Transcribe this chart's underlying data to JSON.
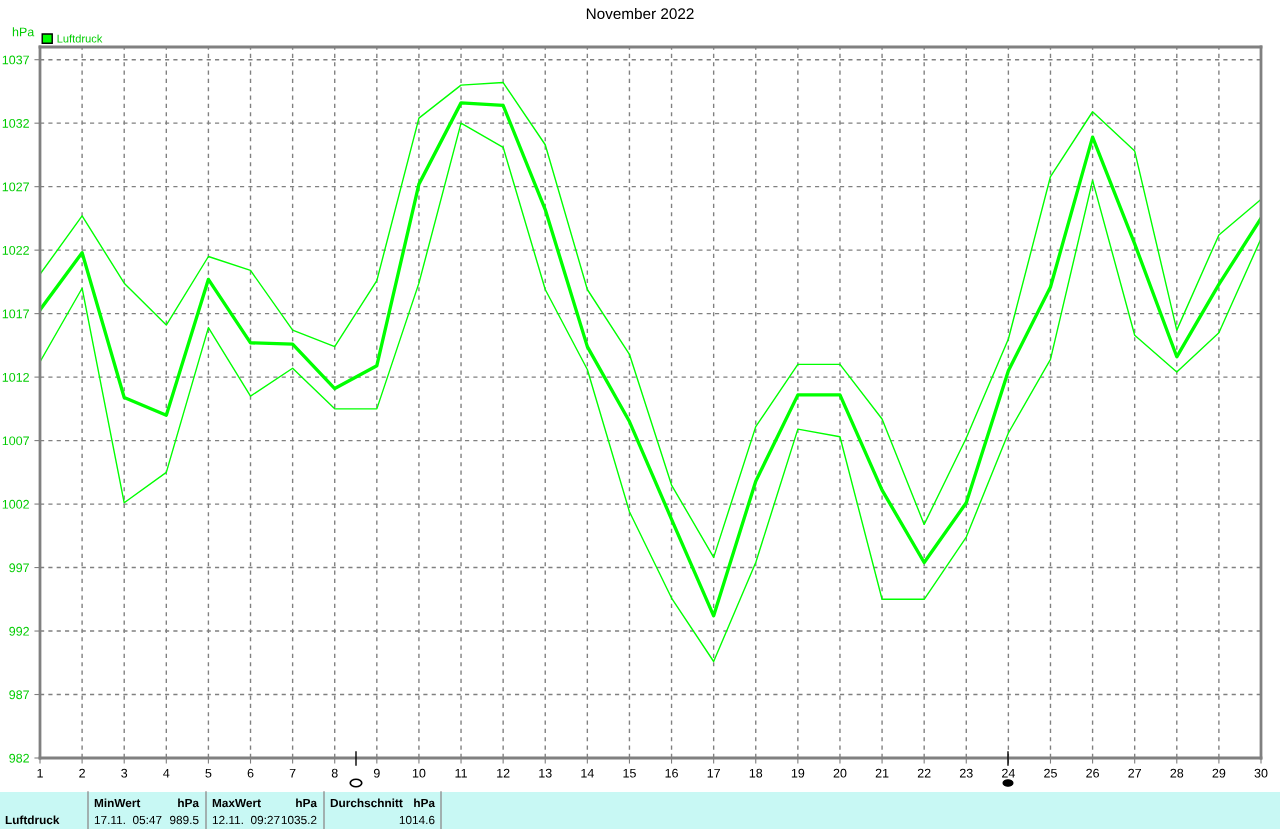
{
  "chart_data": {
    "type": "line",
    "title": "November 2022",
    "ylabel": "hPa",
    "x": [
      1,
      2,
      3,
      4,
      5,
      6,
      7,
      8,
      9,
      10,
      11,
      12,
      13,
      14,
      15,
      16,
      17,
      18,
      19,
      20,
      21,
      22,
      23,
      24,
      25,
      26,
      27,
      28,
      29,
      30
    ],
    "series": [
      {
        "name": "Luftdruck",
        "color": "#00ff00",
        "values": [
          1017.3,
          1021.8,
          1010.4,
          1009.0,
          1019.7,
          1014.7,
          1014.6,
          1011.1,
          1012.9,
          1027.2,
          1033.6,
          1033.4,
          1025.2,
          1014.4,
          1008.5,
          1000.8,
          993.2,
          1003.8,
          1010.6,
          1010.6,
          1003.1,
          997.4,
          1002.1,
          1012.5,
          1019.1,
          1030.9,
          1022.5,
          1013.6,
          1019.3,
          1024.5
        ]
      },
      {
        "color": "#00ff00",
        "values": [
          1020.1,
          1024.7,
          1019.4,
          1016.1,
          1021.5,
          1020.4,
          1015.7,
          1014.4,
          1019.6,
          1032.4,
          1035.0,
          1035.2,
          1030.3,
          1018.9,
          1013.8,
          1003.5,
          997.8,
          1008.1,
          1013.0,
          1013.0,
          1008.7,
          1000.4,
          1007.2,
          1015.0,
          1027.8,
          1032.9,
          1029.8,
          1015.7,
          1023.2,
          1026.0
        ]
      },
      {
        "color": "#00ff00",
        "values": [
          1013.2,
          1019.0,
          1002.1,
          1004.5,
          1015.9,
          1010.5,
          1012.7,
          1009.5,
          1009.5,
          1019.4,
          1032.0,
          1030.1,
          1018.9,
          1012.6,
          1001.4,
          994.6,
          989.6,
          997.4,
          1007.9,
          1007.3,
          994.5,
          994.5,
          999.4,
          1007.6,
          1013.4,
          1027.5,
          1015.3,
          1012.4,
          1015.5,
          1022.9
        ]
      }
    ],
    "xlim": [
      1,
      30
    ],
    "xticks": [
      1,
      2,
      3,
      4,
      5,
      6,
      7,
      8,
      9,
      10,
      11,
      12,
      13,
      14,
      15,
      16,
      17,
      18,
      19,
      20,
      21,
      22,
      23,
      24,
      25,
      26,
      27,
      28,
      29,
      30
    ],
    "ylim": [
      982,
      1038
    ],
    "yticks": [
      982,
      987,
      992,
      997,
      1002,
      1007,
      1012,
      1017,
      1022,
      1027,
      1032,
      1037
    ],
    "grid": true,
    "legend": "top left",
    "marker": "none",
    "line_style": "solid",
    "annotations": [
      "Luftdruck",
      "MinWert",
      "hPa",
      "17.11.  05:47",
      "989.5",
      "MaxWert",
      "hPa",
      "12.11.  09:27",
      "1035.2",
      "Durchschnitt",
      "hPa",
      "1014.6"
    ]
  }
}
